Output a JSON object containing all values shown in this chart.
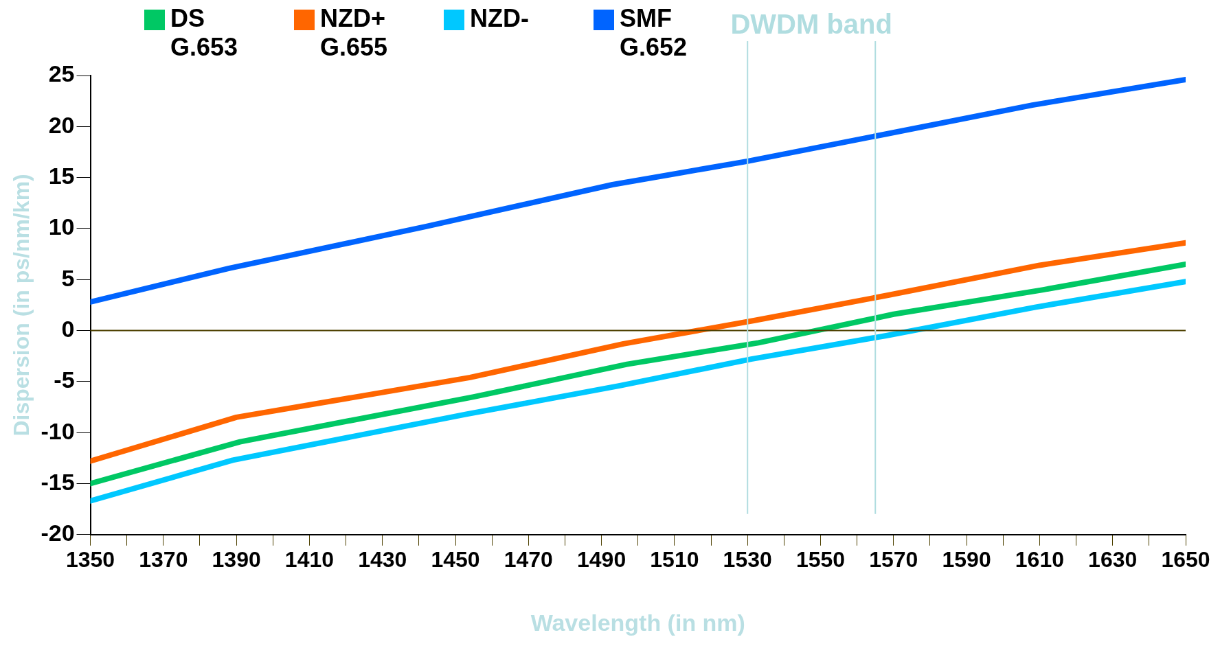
{
  "chart_data": {
    "type": "line",
    "xlabel": "Wavelength (in nm)",
    "ylabel": "Dispersion (in ps/nm/km)",
    "xlim": [
      1350,
      1650
    ],
    "xticks": [
      1350,
      {
        "value": 1360,
        "label": null
      },
      1370,
      {
        "value": 1380,
        "label": null
      },
      1390,
      {
        "value": 1400,
        "label": null
      },
      1410,
      {
        "value": 1420,
        "label": null
      },
      1430,
      {
        "value": 1440,
        "label": null
      },
      1450,
      {
        "value": 1460,
        "label": null
      },
      1470,
      {
        "value": 1480,
        "label": null
      },
      1490,
      {
        "value": 1500,
        "label": null
      },
      1510,
      {
        "value": 1520,
        "label": null
      },
      1530,
      {
        "value": 1540,
        "label": null
      },
      1550,
      {
        "value": 1560,
        "label": null
      },
      1570,
      {
        "value": 1580,
        "label": null
      },
      1590,
      {
        "value": 1600,
        "label": null
      },
      1610,
      {
        "value": 1620,
        "label": null
      },
      1630,
      {
        "value": 1640,
        "label": null
      },
      1650
    ],
    "ylim": [
      -20,
      25
    ],
    "yticks": [
      -20,
      -15,
      -10,
      -5,
      0,
      5,
      10,
      15,
      20,
      25
    ],
    "grid": false,
    "legend": "top",
    "marker": "none",
    "line_style": "solid",
    "series": [
      {
        "name": "DS\nG.653",
        "color": "#00c864",
        "x": [
          1350,
          1391,
          1455,
          1497,
          1533,
          1570,
          1611,
          1650
        ],
        "values": [
          -15.0,
          -10.9,
          -6.5,
          -3.3,
          -1.2,
          1.6,
          4.0,
          6.5
        ]
      },
      {
        "name": "NZD+\nG.655",
        "color": "#ff6600",
        "x": [
          1350,
          1390,
          1454,
          1496,
          1532,
          1569,
          1610,
          1650
        ],
        "values": [
          -12.8,
          -8.5,
          -4.6,
          -1.3,
          1.0,
          3.5,
          6.4,
          8.6
        ]
      },
      {
        "name": "NZD-",
        "color": "#00c8ff",
        "x": [
          1350,
          1389,
          1453,
          1495,
          1531,
          1568,
          1609,
          1650
        ],
        "values": [
          -16.7,
          -12.7,
          -8.2,
          -5.4,
          -2.8,
          -0.5,
          2.3,
          4.8
        ]
      },
      {
        "name": "SMF\nG.652",
        "color": "#0064ff",
        "x": [
          1350,
          1388,
          1442,
          1493,
          1530,
          1567,
          1608,
          1650
        ],
        "values": [
          2.8,
          6.1,
          10.2,
          14.3,
          16.6,
          19.2,
          22.1,
          24.6
        ]
      }
    ],
    "ref_lines": [
      {
        "axis": "y",
        "value": 0,
        "color": "#4d4000"
      },
      {
        "axis": "x",
        "value": 1530,
        "color": "#b0dde0"
      },
      {
        "axis": "x",
        "value": 1565,
        "color": "#b0dde0"
      }
    ],
    "annotations": [
      "DWDM band"
    ]
  }
}
